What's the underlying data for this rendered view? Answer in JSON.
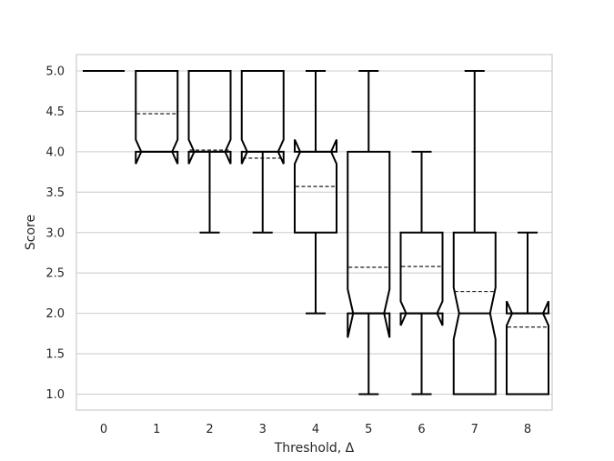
{
  "chart_data": {
    "type": "box",
    "xlabel": "Threshold, Δ",
    "ylabel": "Score",
    "ylim": [
      0.8,
      5.3
    ],
    "grid": "horizontal",
    "categories": [
      "0",
      "1",
      "2",
      "3",
      "4",
      "5",
      "6",
      "7",
      "8"
    ],
    "yticks": [
      "1.0",
      "1.5",
      "2.0",
      "2.5",
      "3.0",
      "3.5",
      "4.0",
      "4.5",
      "5.0"
    ],
    "boxes": [
      {
        "category": "0",
        "whisker_low": 5.0,
        "q1": 5.0,
        "median": 5.0,
        "q3": 5.0,
        "whisker_high": 5.0,
        "mean": 5.0,
        "notch_low": 5.0,
        "notch_high": 5.0
      },
      {
        "category": "1",
        "whisker_low": 4.0,
        "q1": 4.0,
        "median": 4.0,
        "q3": 5.0,
        "whisker_high": 5.0,
        "mean": 4.47,
        "notch_low": 3.85,
        "notch_high": 4.15
      },
      {
        "category": "2",
        "whisker_low": 3.0,
        "q1": 4.0,
        "median": 4.0,
        "q3": 5.0,
        "whisker_high": 5.0,
        "mean": 4.02,
        "notch_low": 3.85,
        "notch_high": 4.15
      },
      {
        "category": "3",
        "whisker_low": 3.0,
        "q1": 4.0,
        "median": 4.0,
        "q3": 5.0,
        "whisker_high": 5.0,
        "mean": 3.92,
        "notch_low": 3.85,
        "notch_high": 4.15
      },
      {
        "category": "4",
        "whisker_low": 2.0,
        "q1": 3.0,
        "median": 4.0,
        "q3": 4.0,
        "whisker_high": 5.0,
        "mean": 3.57,
        "notch_low": 3.85,
        "notch_high": 4.15
      },
      {
        "category": "5",
        "whisker_low": 1.0,
        "q1": 2.0,
        "median": 2.0,
        "q3": 4.0,
        "whisker_high": 5.0,
        "mean": 2.57,
        "notch_low": 1.7,
        "notch_high": 2.3
      },
      {
        "category": "6",
        "whisker_low": 1.0,
        "q1": 2.0,
        "median": 2.0,
        "q3": 3.0,
        "whisker_high": 4.0,
        "mean": 2.58,
        "notch_low": 1.85,
        "notch_high": 2.15
      },
      {
        "category": "7",
        "whisker_low": 1.0,
        "q1": 1.0,
        "median": 2.0,
        "q3": 3.0,
        "whisker_high": 5.0,
        "mean": 2.27,
        "notch_low": 1.68,
        "notch_high": 2.32
      },
      {
        "category": "8",
        "whisker_low": 1.0,
        "q1": 1.0,
        "median": 2.0,
        "q3": 2.0,
        "whisker_high": 3.0,
        "mean": 1.83,
        "notch_low": 1.85,
        "notch_high": 2.15
      }
    ]
  }
}
